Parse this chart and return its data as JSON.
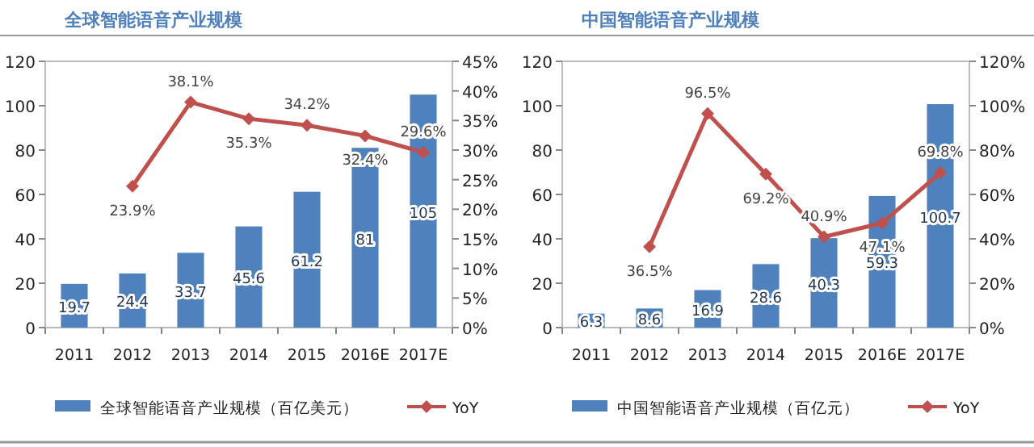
{
  "chart_data": [
    {
      "type": "bar",
      "title": "全球智能语音产业规模",
      "categories": [
        "2011",
        "2012",
        "2013",
        "2014",
        "2015",
        "2016E",
        "2017E"
      ],
      "series": [
        {
          "name": "全球智能语音产业规模（百亿美元）",
          "color": "#4f81bd",
          "values": [
            19.7,
            24.4,
            33.7,
            45.6,
            61.2,
            81,
            105
          ],
          "value_labels": [
            "19.7",
            "24.4",
            "33.7",
            "45.6",
            "61.2",
            "81",
            "105"
          ]
        },
        {
          "name": "YoY",
          "type": "line",
          "axis": "y2",
          "color": "#c0504d",
          "marker": "diamond",
          "values": [
            null,
            23.9,
            38.1,
            35.3,
            34.2,
            32.4,
            29.6
          ],
          "value_labels": [
            null,
            "23.9%",
            "38.1%",
            "35.3%",
            "34.2%",
            "32.4%",
            "29.6%"
          ]
        }
      ],
      "ylim": [
        0,
        120
      ],
      "yticks": [
        0,
        20,
        40,
        60,
        80,
        100,
        120
      ],
      "y2lim": [
        0,
        45
      ],
      "y2ticks": [
        {
          "value": 0,
          "label": "0%"
        },
        {
          "value": 5,
          "label": "5%"
        },
        {
          "value": 10,
          "label": "10%"
        },
        {
          "value": 15,
          "label": "15%"
        },
        {
          "value": 20,
          "label": "20%"
        },
        {
          "value": 25,
          "label": "25%"
        },
        {
          "value": 30,
          "label": "30%"
        },
        {
          "value": 35,
          "label": "35%"
        },
        {
          "value": 40,
          "label": "40%"
        },
        {
          "value": 45,
          "label": "45%"
        }
      ],
      "legend": "bottom"
    },
    {
      "type": "bar",
      "title": "中国智能语音产业规模",
      "categories": [
        "2011",
        "2012",
        "2013",
        "2014",
        "2015",
        "2016E",
        "2017E"
      ],
      "series": [
        {
          "name": "中国智能语音产业规模（百亿元）",
          "color": "#4f81bd",
          "values": [
            6.3,
            8.6,
            16.9,
            28.6,
            40.3,
            59.3,
            100.7
          ],
          "value_labels": [
            "6.3",
            "8.6",
            "16.9",
            "28.6",
            "40.3",
            "59.3",
            "100.7"
          ]
        },
        {
          "name": "YoY",
          "type": "line",
          "axis": "y2",
          "color": "#c0504d",
          "marker": "diamond",
          "values": [
            null,
            36.5,
            96.5,
            69.2,
            40.9,
            47.1,
            69.8
          ],
          "value_labels": [
            null,
            "36.5%",
            "96.5%",
            "69.2%",
            "40.9%",
            "47.1%",
            "69.8%"
          ]
        }
      ],
      "ylim": [
        0,
        120
      ],
      "yticks": [
        0,
        20,
        40,
        60,
        80,
        100,
        120
      ],
      "y2lim": [
        0,
        120
      ],
      "y2ticks": [
        {
          "value": 0,
          "label": "0%"
        },
        {
          "value": 20,
          "label": "20%"
        },
        {
          "value": 40,
          "label": "40%"
        },
        {
          "value": 60,
          "label": "60%"
        },
        {
          "value": 80,
          "label": "80%"
        },
        {
          "value": 100,
          "label": "100%"
        },
        {
          "value": 120,
          "label": "120%"
        }
      ],
      "legend": "bottom"
    }
  ]
}
